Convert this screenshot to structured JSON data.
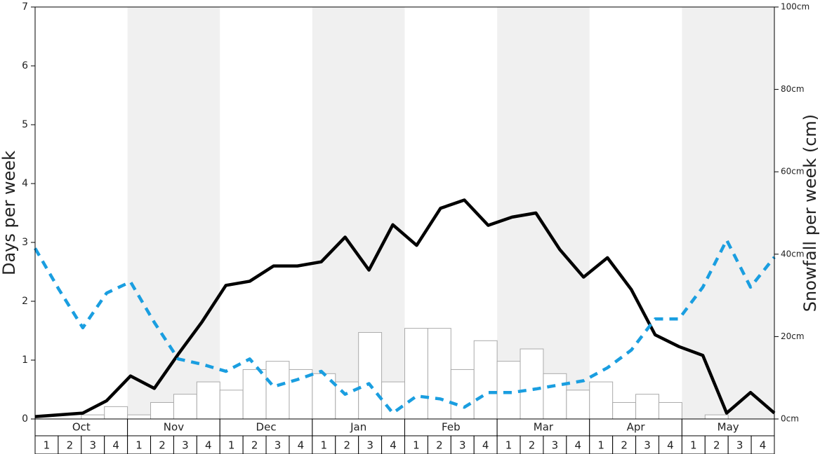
{
  "chart_data": {
    "type": "combo",
    "y_label": "Days per week",
    "y2_label": "Snowfall per week (cm)",
    "groups": [
      "Oct",
      "Nov",
      "Dec",
      "Jan",
      "Feb",
      "Mar",
      "Apr",
      "May"
    ],
    "categories": [
      "1",
      "2",
      "3",
      "4",
      "1",
      "2",
      "3",
      "4",
      "1",
      "2",
      "3",
      "4",
      "1",
      "2",
      "3",
      "4",
      "1",
      "2",
      "3",
      "4",
      "1",
      "2",
      "3",
      "4",
      "1",
      "2",
      "3",
      "4",
      "1",
      "2",
      "3",
      "4"
    ],
    "ylim": [
      0,
      7
    ],
    "yticks": [
      0,
      1,
      2,
      3,
      4,
      5,
      6,
      7
    ],
    "y2lim": [
      0,
      100
    ],
    "y2ticks": [
      {
        "value": 0,
        "label": "0cm"
      },
      {
        "value": 20,
        "label": "20cm"
      },
      {
        "value": 40,
        "label": "40cm"
      },
      {
        "value": 60,
        "label": "60cm"
      },
      {
        "value": 80,
        "label": "80cm"
      },
      {
        "value": 100,
        "label": "100cm"
      }
    ],
    "band_color": "#f0f0f0",
    "series": [
      {
        "type": "bar",
        "axis": "y2",
        "color": "#ffffff",
        "values": [
          0,
          0,
          1,
          3,
          1,
          4,
          6,
          9,
          7,
          12,
          14,
          12,
          11,
          9,
          21,
          9,
          22,
          22,
          12,
          19,
          14,
          17,
          11,
          7,
          9,
          4,
          6,
          4,
          0,
          1,
          0,
          0
        ]
      },
      {
        "type": "line",
        "color": "#000000",
        "values": [
          0.04,
          0.07,
          0.1,
          0.31,
          0.73,
          0.52,
          1.1,
          1.65,
          2.27,
          2.34,
          2.6,
          2.6,
          2.67,
          3.09,
          2.53,
          3.3,
          2.95,
          3.58,
          3.72,
          3.29,
          3.43,
          3.5,
          2.88,
          2.41,
          2.74,
          2.2,
          1.43,
          1.23,
          1.08,
          0.1,
          0.45,
          0.1
        ]
      },
      {
        "type": "dashed-line",
        "color": "#1a9ee0",
        "values": [
          2.9,
          2.2,
          1.55,
          2.14,
          2.33,
          1.64,
          1.02,
          0.93,
          0.81,
          1.02,
          0.55,
          0.67,
          0.81,
          0.42,
          0.6,
          0.1,
          0.39,
          0.34,
          0.2,
          0.45,
          0.45,
          0.51,
          0.58,
          0.65,
          0.87,
          1.17,
          1.7,
          1.7,
          2.24,
          3.04,
          2.24,
          2.75
        ]
      }
    ]
  }
}
